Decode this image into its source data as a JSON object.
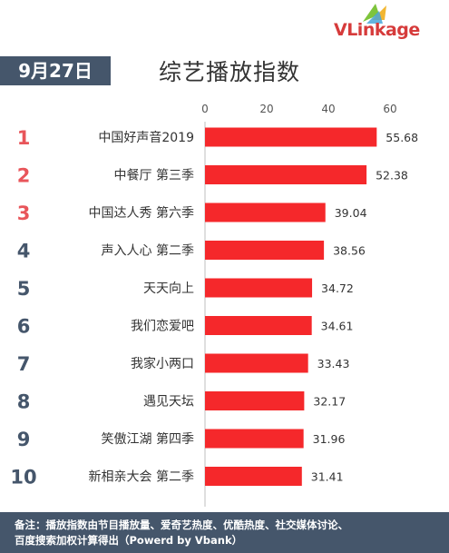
{
  "header": {
    "date": "9月27日",
    "title": "综艺播放指数",
    "logo_text": "VLinkage"
  },
  "chart_data": {
    "type": "bar",
    "orientation": "horizontal",
    "ranks": [
      "1",
      "2",
      "3",
      "4",
      "5",
      "6",
      "7",
      "8",
      "9",
      "10"
    ],
    "categories": [
      "中国好声音2019",
      "中餐厅 第三季",
      "中国达人秀 第六季",
      "声入人心 第二季",
      "天天向上",
      "我们恋爱吧",
      "我家小两口",
      "遇见天坛",
      "笑傲江湖 第四季",
      "新相亲大会 第二季"
    ],
    "values": [
      55.68,
      52.38,
      39.04,
      38.56,
      34.72,
      34.61,
      33.43,
      32.17,
      31.96,
      31.41
    ],
    "value_labels": [
      "55.68",
      "52.38",
      "39.04",
      "38.56",
      "34.72",
      "34.61",
      "33.43",
      "32.17",
      "31.96",
      "31.41"
    ],
    "xlim": [
      0,
      60
    ],
    "xticks": [
      "0",
      "20",
      "40",
      "60"
    ],
    "grid": false,
    "bar_color": "#f5282b",
    "rank_colors": {
      "top3": "#e8555a",
      "rest": "#45566b"
    }
  },
  "footer": {
    "note_line1": "备注：播放指数由节目播放量、爱奇艺热度、优酷热度、社交媒体讨论、",
    "note_line2": "百度搜索加权计算得出（Powerd by Vbank）"
  }
}
